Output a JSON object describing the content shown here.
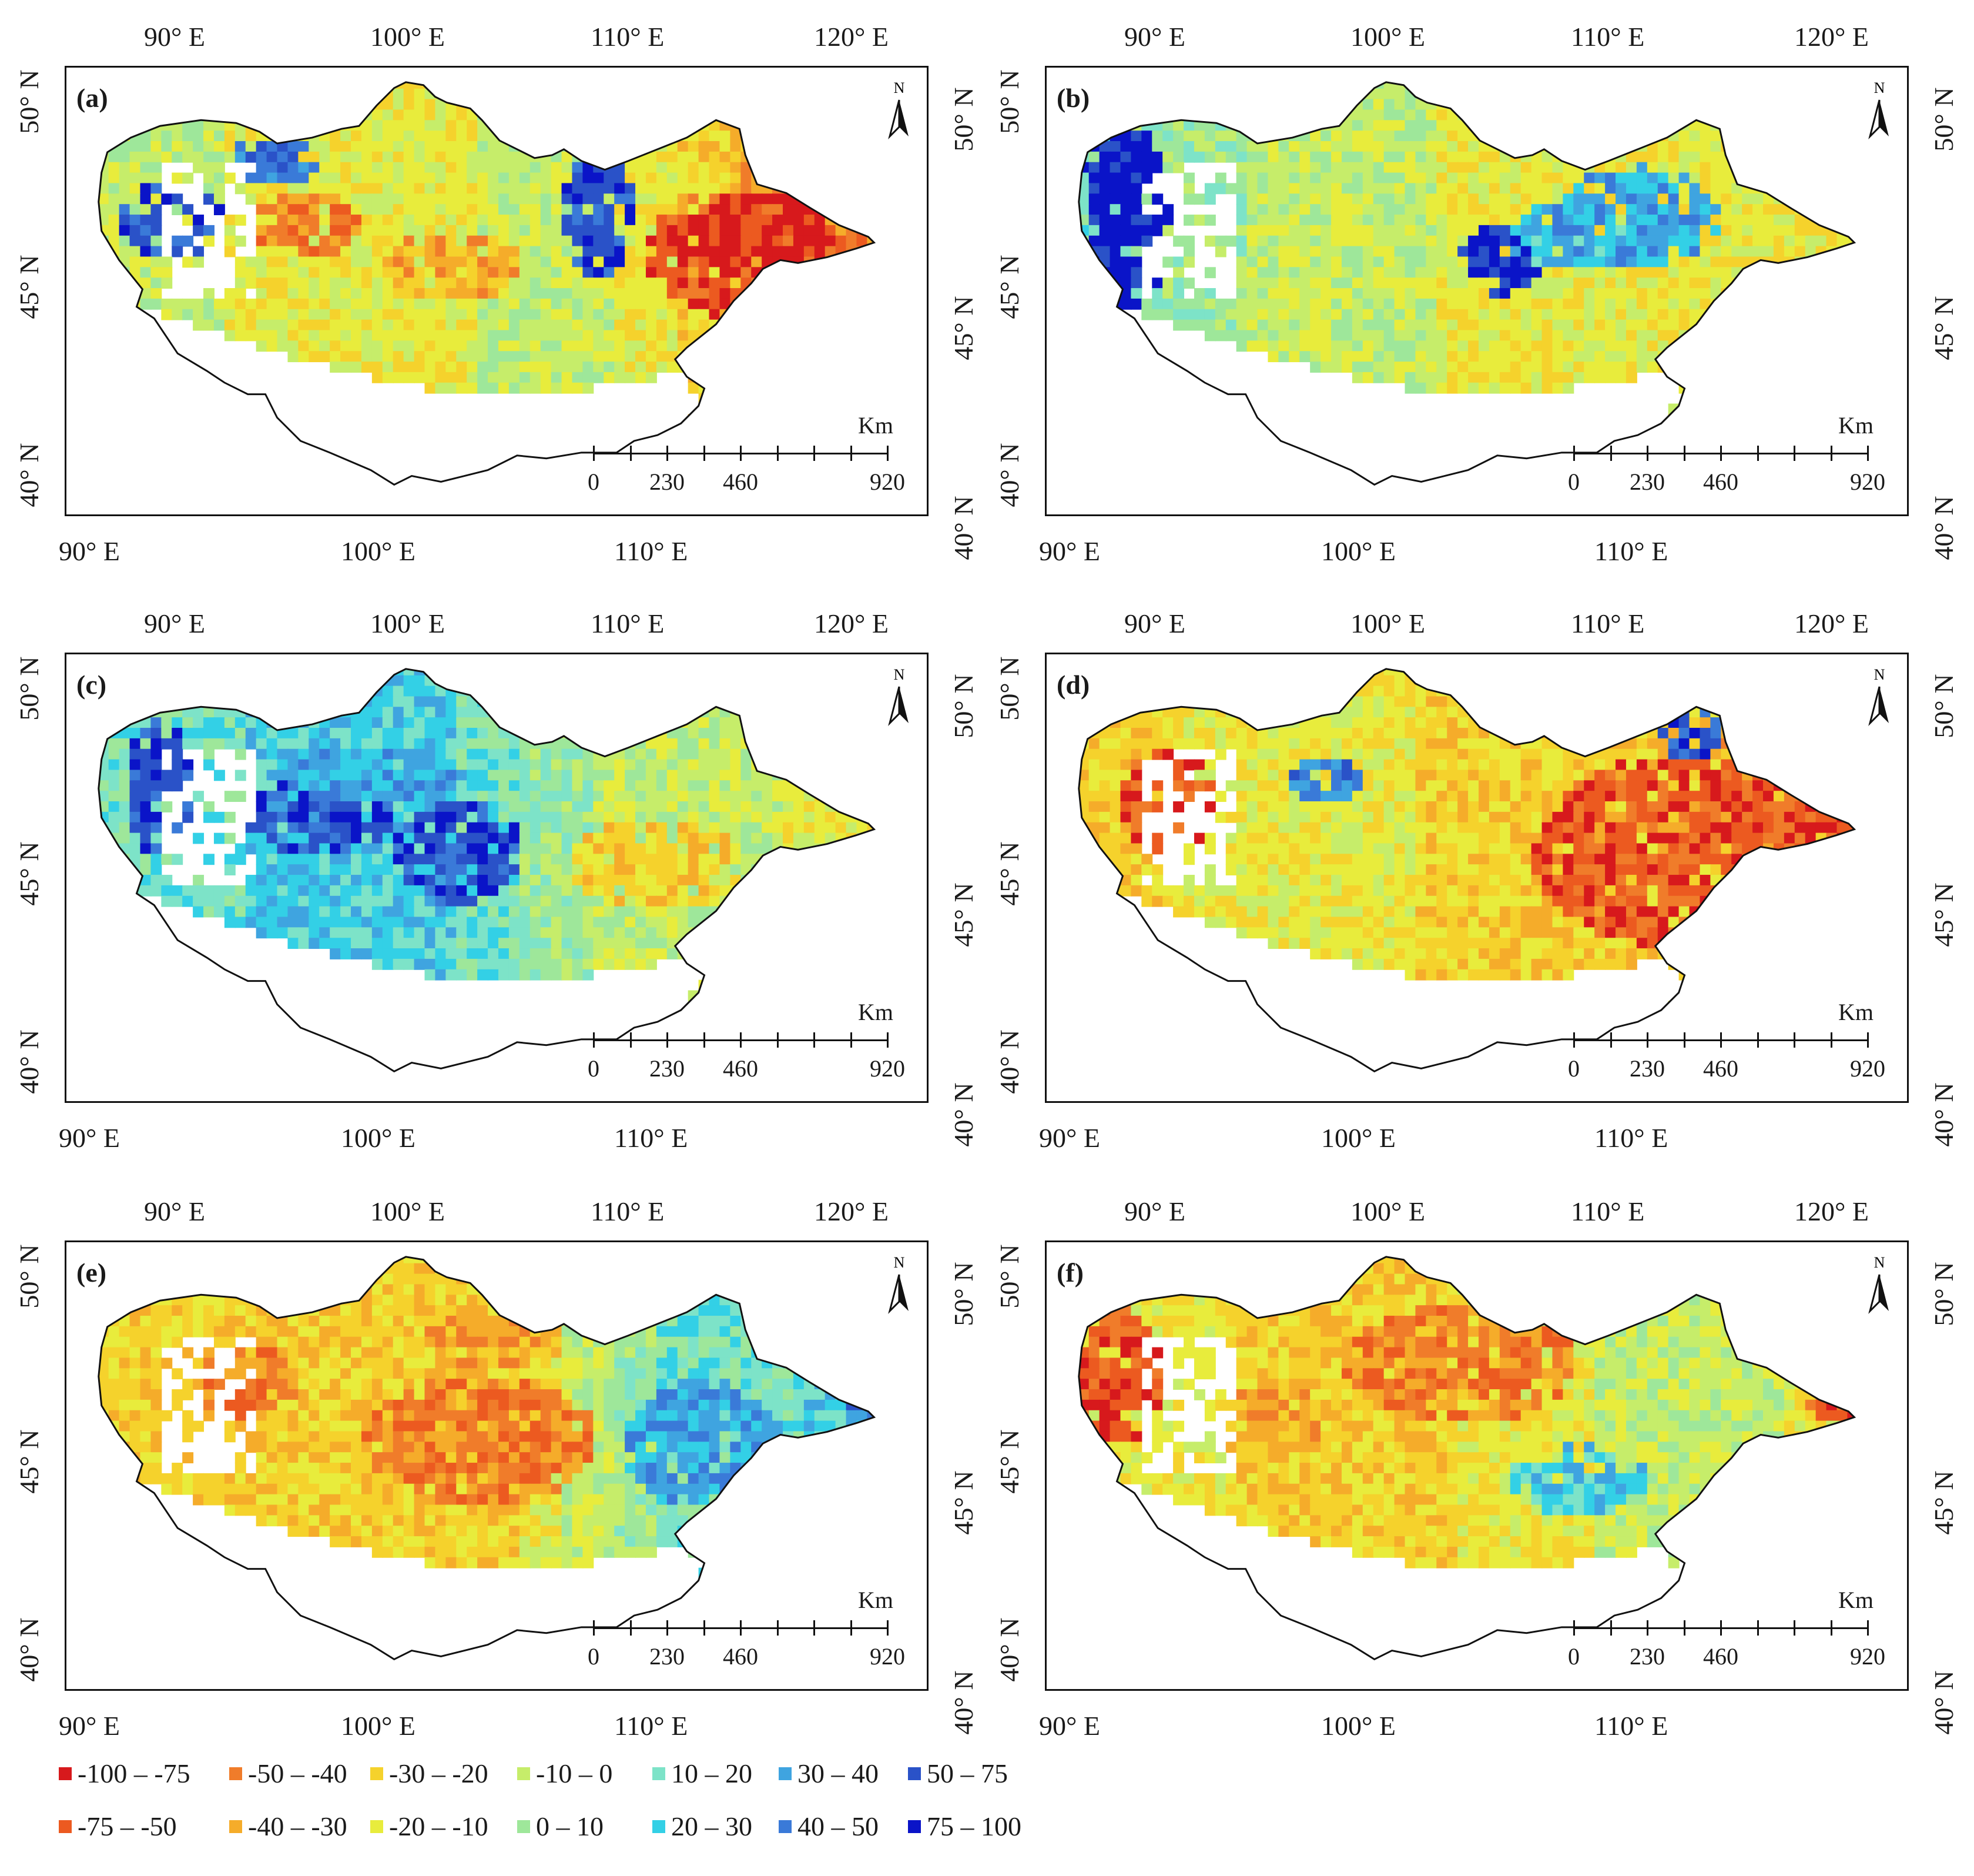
{
  "panels": [
    {
      "label": "(a)",
      "scheme": "a"
    },
    {
      "label": "(b)",
      "scheme": "b"
    },
    {
      "label": "(c)",
      "scheme": "c"
    },
    {
      "label": "(d)",
      "scheme": "d"
    },
    {
      "label": "(e)",
      "scheme": "e"
    },
    {
      "label": "(f)",
      "scheme": "f"
    }
  ],
  "axes": {
    "top_lon": [
      "90° E",
      "100° E",
      "110° E",
      "120° E"
    ],
    "bottom_lon": [
      "90° E",
      "100° E",
      "110° E"
    ],
    "left_lat": [
      "50° N",
      "45° N",
      "40° N"
    ],
    "right_lat": [
      "50° N",
      "45° N",
      "40° N"
    ]
  },
  "north_label": "N",
  "scale_bar": {
    "unit": "Km",
    "ticks": [
      "0",
      "230",
      "460",
      "920"
    ]
  },
  "legend": {
    "row1": [
      {
        "label": "-100 – -75",
        "color": "#d7191c"
      },
      {
        "label": "-50 – -40",
        "color": "#f07c2a"
      },
      {
        "label": "-30 – -20",
        "color": "#f5d22c"
      },
      {
        "label": "-10 – 0",
        "color": "#c6ed6a"
      },
      {
        "label": "10 – 20",
        "color": "#7de3c8"
      },
      {
        "label": "30 – 40",
        "color": "#3fa4e0"
      },
      {
        "label": "50 – 75",
        "color": "#2a52c8"
      }
    ],
    "row2": [
      {
        "label": "-75 – -50",
        "color": "#ec5a20"
      },
      {
        "label": "-40 – -30",
        "color": "#f5ac2a"
      },
      {
        "label": "-20 – -10",
        "color": "#e8ec3c"
      },
      {
        "label": "0 – 10",
        "color": "#9ee79a"
      },
      {
        "label": "20 – 30",
        "color": "#33d0e6"
      },
      {
        "label": "40 – 50",
        "color": "#3a7ad8"
      },
      {
        "label": "75 – 100",
        "color": "#0a14c8"
      }
    ]
  }
}
